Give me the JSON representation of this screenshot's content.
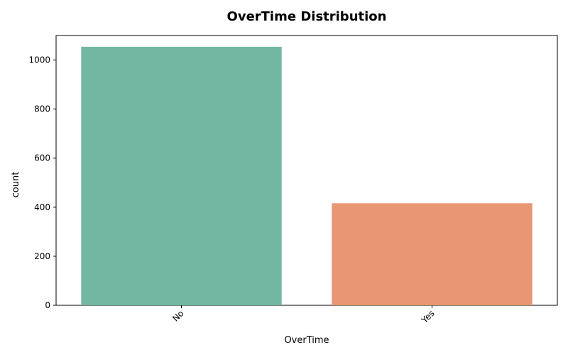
{
  "chart_data": {
    "type": "bar",
    "title": "OverTime Distribution",
    "xlabel": "OverTime",
    "ylabel": "count",
    "categories": [
      "No",
      "Yes"
    ],
    "values": [
      1054,
      416
    ],
    "colors": [
      "#73b7a2",
      "#e99674"
    ],
    "ylim": [
      0,
      1100
    ],
    "yticks": [
      0,
      200,
      400,
      600,
      800,
      1000
    ],
    "ytick_labels": [
      "0",
      "200",
      "400",
      "600",
      "800",
      "1000"
    ],
    "xtick_rotation_deg": 45,
    "grid": false,
    "legend": "none"
  }
}
